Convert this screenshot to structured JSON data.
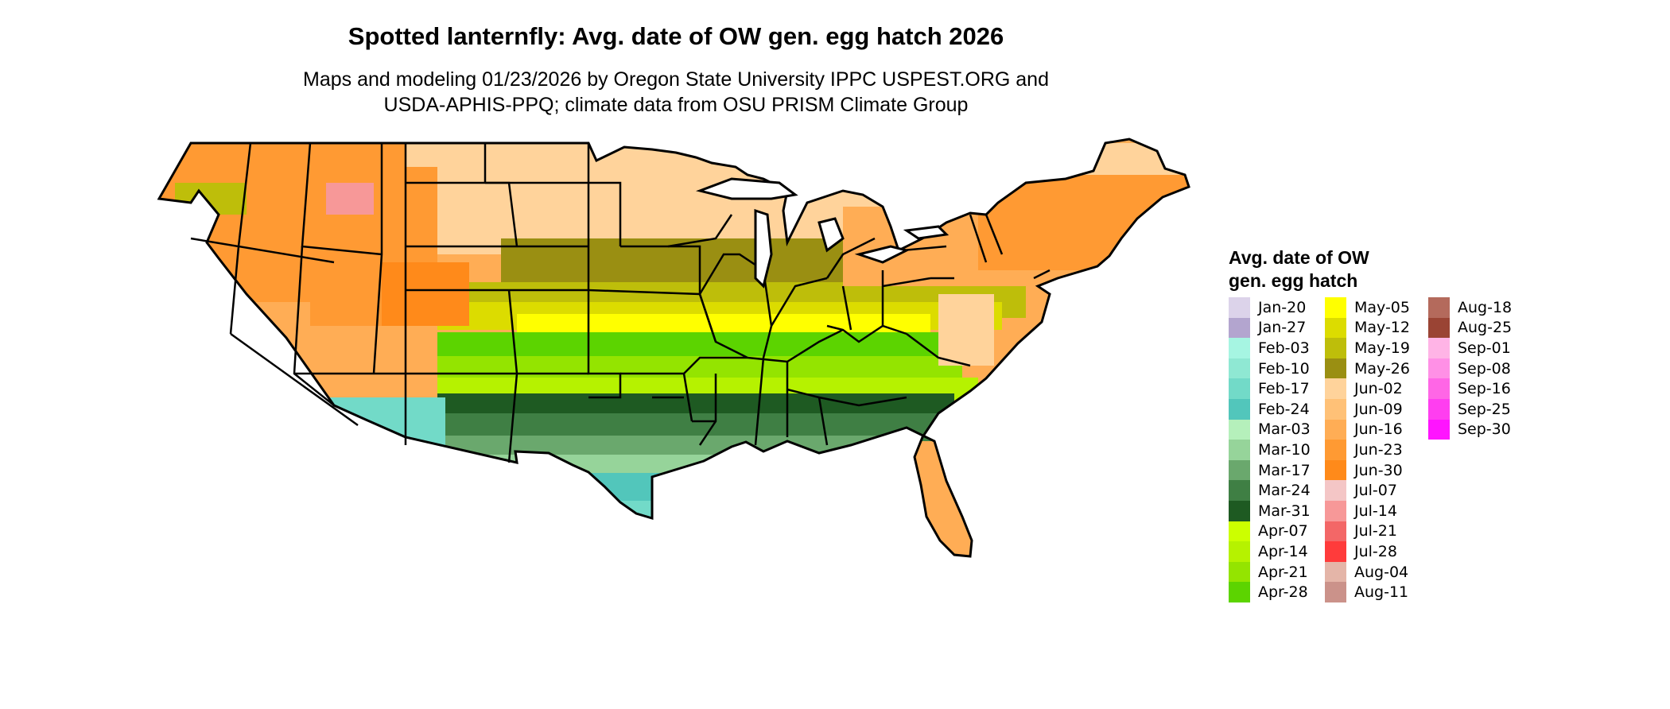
{
  "header": {
    "title": "Spotted lanternfly: Avg. date of OW gen. egg hatch 2026",
    "subtitle_line1": "Maps and modeling 01/23/2026 by Oregon State University IPPC USPEST.ORG and",
    "subtitle_line2": "USDA-APHIS-PPQ; climate data from OSU PRISM Climate Group"
  },
  "legend": {
    "title_line1": "Avg. date of OW",
    "title_line2": "gen. egg hatch",
    "columns": [
      [
        {
          "label": "Jan-20",
          "color": "#dcd3ea"
        },
        {
          "label": "Jan-27",
          "color": "#b3a5cf"
        },
        {
          "label": "Feb-03",
          "color": "#a6f5e2"
        },
        {
          "label": "Feb-10",
          "color": "#8fe8d3"
        },
        {
          "label": "Feb-17",
          "color": "#72dac8"
        },
        {
          "label": "Feb-24",
          "color": "#52c6bb"
        },
        {
          "label": "Mar-03",
          "color": "#b5f0bb"
        },
        {
          "label": "Mar-10",
          "color": "#96d49a"
        },
        {
          "label": "Mar-17",
          "color": "#6aa86d"
        },
        {
          "label": "Mar-24",
          "color": "#3f7f44"
        },
        {
          "label": "Mar-31",
          "color": "#1e5a22"
        },
        {
          "label": "Apr-07",
          "color": "#ccff00"
        },
        {
          "label": "Apr-14",
          "color": "#b6f200"
        },
        {
          "label": "Apr-21",
          "color": "#94e400"
        },
        {
          "label": "Apr-28",
          "color": "#5cd400"
        }
      ],
      [
        {
          "label": "May-05",
          "color": "#ffff00"
        },
        {
          "label": "May-12",
          "color": "#dcdc00"
        },
        {
          "label": "May-19",
          "color": "#bebe0a"
        },
        {
          "label": "May-26",
          "color": "#9a8f12"
        },
        {
          "label": "Jun-02",
          "color": "#ffd39b"
        },
        {
          "label": "Jun-09",
          "color": "#ffc177"
        },
        {
          "label": "Jun-16",
          "color": "#ffad55"
        },
        {
          "label": "Jun-23",
          "color": "#ff9a33"
        },
        {
          "label": "Jun-30",
          "color": "#ff8a1a"
        },
        {
          "label": "Jul-07",
          "color": "#f4c6c6"
        },
        {
          "label": "Jul-14",
          "color": "#f79898"
        },
        {
          "label": "Jul-21",
          "color": "#f36767"
        },
        {
          "label": "Jul-28",
          "color": "#ff3b3b"
        },
        {
          "label": "Aug-04",
          "color": "#e4b5a8"
        },
        {
          "label": "Aug-11",
          "color": "#cb928a"
        }
      ],
      [
        {
          "label": "Aug-18",
          "color": "#b46a5c"
        },
        {
          "label": "Aug-25",
          "color": "#9a4434"
        },
        {
          "label": "Sep-01",
          "color": "#ffb4e6"
        },
        {
          "label": "Sep-08",
          "color": "#ff90e6"
        },
        {
          "label": "Sep-16",
          "color": "#ff66e6"
        },
        {
          "label": "Sep-25",
          "color": "#ff3ef0"
        },
        {
          "label": "Sep-30",
          "color": "#ff14ff"
        }
      ]
    ]
  }
}
